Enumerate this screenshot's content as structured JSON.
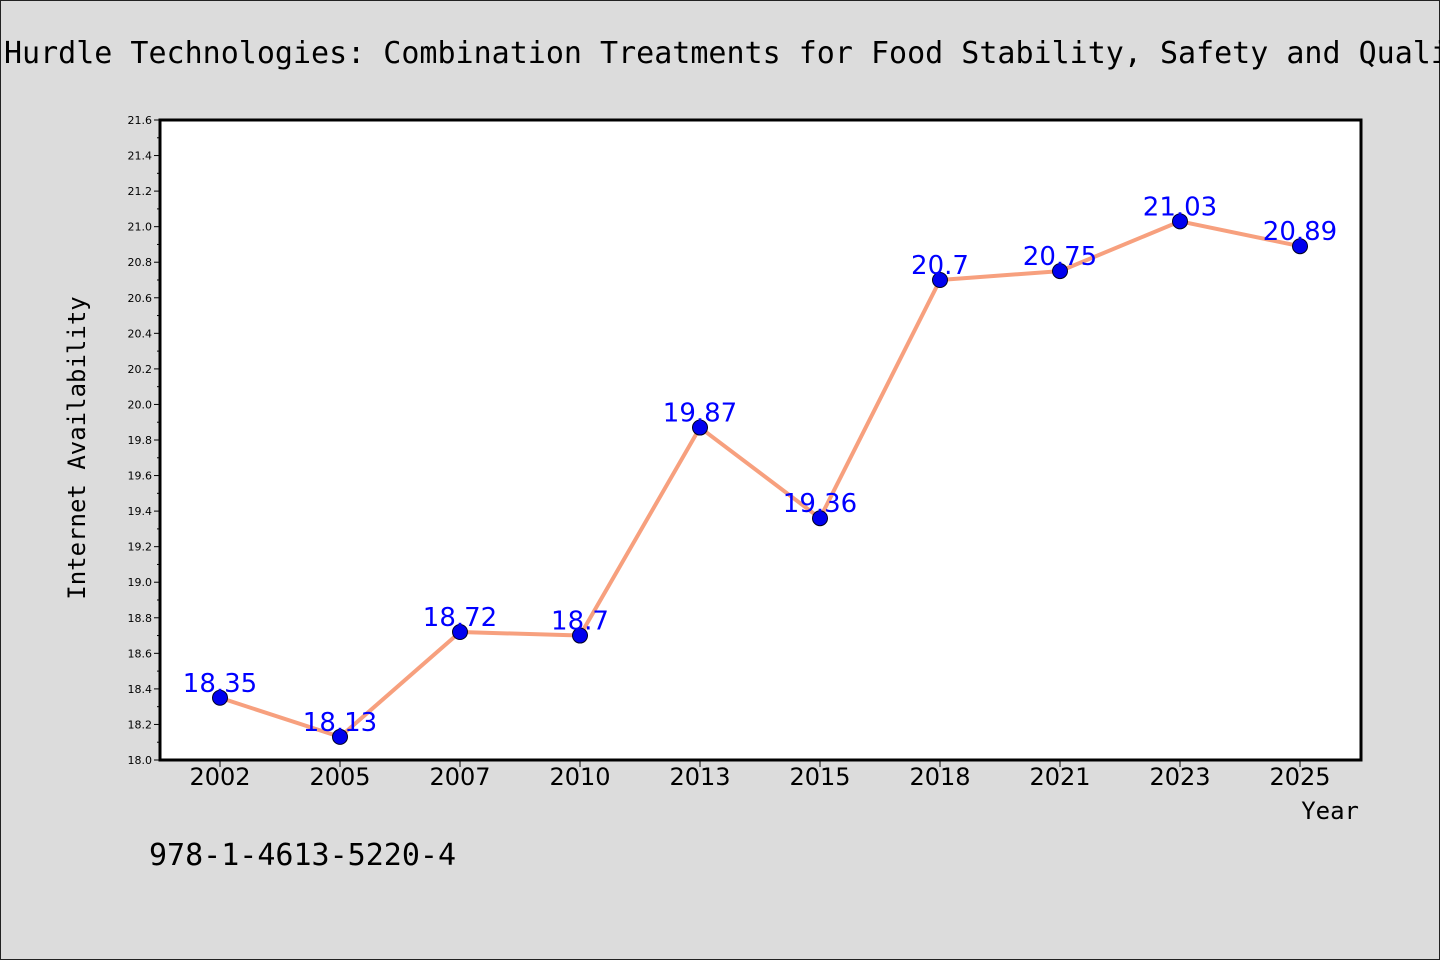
{
  "title": "Hurdle Technologies: Combination Treatments for Food Stability, Safety and Quality",
  "isbn": "978-1-4613-5220-4",
  "colors": {
    "background": "#dcdcdc",
    "plot_background": "#ffffff",
    "line": "#f7a07e",
    "marker": "#0000ee",
    "data_label": "#0000ff"
  },
  "chart_data": {
    "type": "line",
    "title": "Hurdle Technologies: Combination Treatments for Food Stability, Safety and Quality",
    "xlabel": "Year",
    "ylabel": "Internet Availability",
    "categories": [
      "2002",
      "2005",
      "2007",
      "2010",
      "2013",
      "2015",
      "2018",
      "2021",
      "2023",
      "2025"
    ],
    "values": [
      18.35,
      18.13,
      18.72,
      18.7,
      19.87,
      19.36,
      20.7,
      20.75,
      21.03,
      20.89
    ],
    "data_labels": [
      "18.35",
      "18.13",
      "18.72",
      "18.7",
      "19.87",
      "19.36",
      "20.7",
      "20.75",
      "21.03",
      "20.89"
    ],
    "ylim": [
      18.0,
      21.6
    ],
    "yticks": [
      "18.0",
      "18.2",
      "18.4",
      "18.6",
      "18.8",
      "19.0",
      "19.2",
      "19.4",
      "19.6",
      "19.8",
      "20.0",
      "20.2",
      "20.4",
      "20.6",
      "20.8",
      "21.0",
      "21.2",
      "21.4",
      "21.6"
    ],
    "grid": false,
    "legend": "none"
  }
}
